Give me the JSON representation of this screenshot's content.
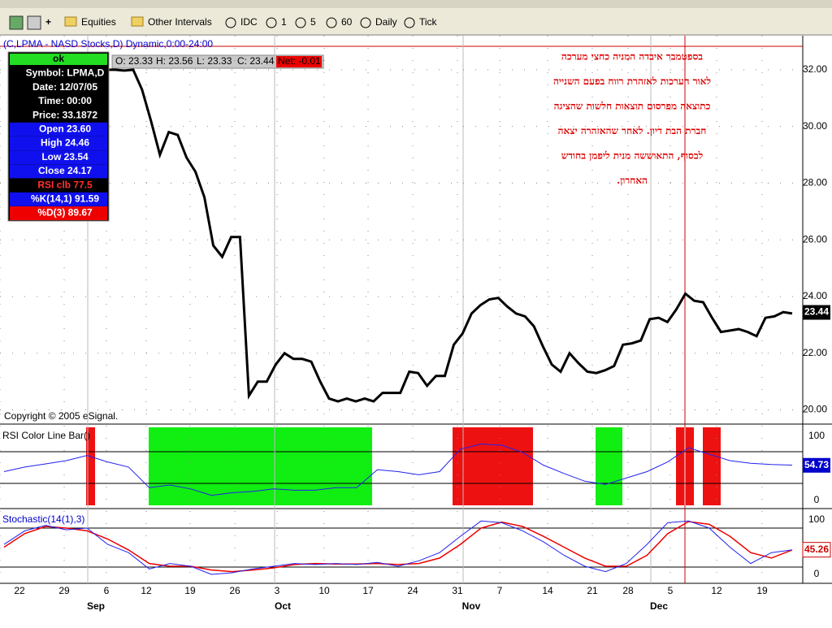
{
  "toolbar": {
    "items": [
      "Equities",
      "Other Intervals",
      "IDC",
      "1",
      "5",
      "60",
      "Daily",
      "Tick"
    ]
  },
  "chart_title": "(C,LPMA - NASD Stocks,D) Dynamic,0:00-24:00",
  "quote_bar": [
    "O: 23.33",
    "H: 23.56",
    "L: 23.33",
    "C: 23.44",
    "Net: -0.01"
  ],
  "info_box": [
    "ok",
    "Symbol: LPMA,D",
    "Date: 12/07/05",
    "Time: 00:00",
    "Price: 33.1872",
    "Open 23.60",
    "High 24.46",
    "Low 23.54",
    "Close 24.17",
    "RSI clb 77.5",
    "%K(14,1) 91.59",
    "%D(3) 89.67"
  ],
  "annotation": [
    "בספטמבר איבדה המניה כחצי מערכה",
    "לאור הערכות לאזהרת רווח בפעם השנייה",
    "כתוצאה מפרסום תוצאות חלשות שהציגה",
    "חברת הבת דיון. לאחר שהאזהרה יצאה",
    "לבסוף, התאוששה מנית ליפמן בחודש",
    "האחרון."
  ],
  "copyright": "Copyright © 2005 eSignal.",
  "price": {
    "ylim": [
      19.5,
      33.2
    ],
    "yticks": [
      {
        "value": 32,
        "label": "32.00"
      },
      {
        "value": 30,
        "label": "30.00"
      },
      {
        "value": 28,
        "label": "28.00"
      },
      {
        "value": 26,
        "label": "26.00"
      },
      {
        "value": 24,
        "label": "24.00"
      },
      {
        "value": 22,
        "label": "22.00"
      },
      {
        "value": 20,
        "label": "20.00"
      }
    ],
    "last": {
      "value": 23.44,
      "label": "23.44"
    },
    "values": [
      32.0,
      32.0,
      31.97,
      32.0,
      31.3,
      30.2,
      29.0,
      29.8,
      29.7,
      28.9,
      28.4,
      27.5,
      25.8,
      25.4,
      26.1,
      26.1,
      20.5,
      21.0,
      21.0,
      21.6,
      22.0,
      21.8,
      21.8,
      21.7,
      21.0,
      20.4,
      20.3,
      20.4,
      20.3,
      20.4,
      20.3,
      20.6,
      20.6,
      20.6,
      21.35,
      21.3,
      20.85,
      21.2,
      21.2,
      22.3,
      22.7,
      23.4,
      23.7,
      23.9,
      23.95,
      23.65,
      23.4,
      23.3,
      22.95,
      22.25,
      21.6,
      21.35,
      22.0,
      21.65,
      21.35,
      21.3,
      21.4,
      21.55,
      22.3,
      22.35,
      22.45,
      23.2,
      23.25,
      23.1,
      23.55,
      24.1,
      23.85,
      23.8,
      23.25,
      22.75,
      22.8,
      22.85,
      22.75,
      22.6,
      23.25,
      23.3,
      23.45,
      23.4
    ]
  },
  "rsi": {
    "title": "RSI Color Line Bar()",
    "ticks": [
      100,
      0
    ],
    "last": 54.73,
    "values": [
      45,
      52,
      57,
      62,
      70,
      60,
      52,
      20,
      24,
      18,
      8,
      12,
      14,
      18,
      16,
      16,
      20,
      20,
      48,
      45,
      40,
      45,
      80,
      88,
      86,
      75,
      55,
      42,
      30,
      25,
      35,
      45,
      60,
      82,
      72,
      62,
      58,
      56,
      55
    ]
  },
  "stochastic": {
    "title": "Stochastic(14(1),3)",
    "ticks": [
      100,
      0
    ],
    "last": 45.26,
    "k": [
      55,
      80,
      90,
      82,
      85,
      55,
      40,
      10,
      20,
      15,
      0,
      3,
      10,
      15,
      20,
      18,
      20,
      18,
      22,
      15,
      25,
      40,
      70,
      98,
      95,
      80,
      60,
      35,
      15,
      5,
      20,
      55,
      95,
      98,
      85,
      50,
      20,
      40,
      45
    ],
    "d": [
      50,
      75,
      88,
      85,
      80,
      65,
      45,
      20,
      15,
      15,
      8,
      5,
      8,
      12,
      18,
      20,
      19,
      19,
      20,
      18,
      20,
      30,
      55,
      85,
      96,
      88,
      70,
      50,
      30,
      15,
      15,
      35,
      75,
      97,
      92,
      70,
      40,
      30,
      45
    ]
  },
  "x_axis": {
    "days": [
      "22",
      "29",
      "6",
      "12",
      "19",
      "26",
      "3",
      "10",
      "17",
      "24",
      "31",
      "7",
      "14",
      "21",
      "28",
      "5",
      "12",
      "19"
    ],
    "months": [
      "Sep",
      "Oct",
      "Nov",
      "Dec"
    ]
  }
}
